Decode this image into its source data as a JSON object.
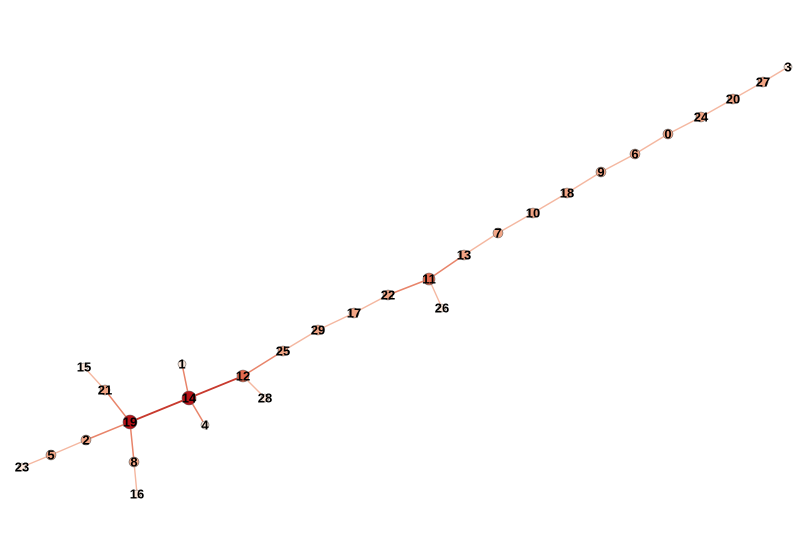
{
  "graph": {
    "colors": {
      "edge_light": "#f4b7a0",
      "edge_mid": "#e8846a",
      "edge_dark": "#c83a2e",
      "node_light": "#fde8dc",
      "node_mid": "#f2a585",
      "node_strong": "#e46a4e",
      "node_dark": "#b51218",
      "node_stroke": "#6b6b6b"
    },
    "nodes": [
      {
        "id": "0",
        "label": "0",
        "level": 2
      },
      {
        "id": "1",
        "label": "1",
        "level": 0
      },
      {
        "id": "2",
        "label": "2",
        "level": 2
      },
      {
        "id": "3",
        "label": "3",
        "level": 0
      },
      {
        "id": "4",
        "label": "4",
        "level": 0
      },
      {
        "id": "5",
        "label": "5",
        "level": 2
      },
      {
        "id": "6",
        "label": "6",
        "level": 2
      },
      {
        "id": "7",
        "label": "7",
        "level": 2
      },
      {
        "id": "8",
        "label": "8",
        "level": 1
      },
      {
        "id": "9",
        "label": "9",
        "level": 2
      },
      {
        "id": "10",
        "label": "10",
        "level": 2
      },
      {
        "id": "11",
        "label": "11",
        "level": 3
      },
      {
        "id": "12",
        "label": "12",
        "level": 3
      },
      {
        "id": "13",
        "label": "13",
        "level": 2
      },
      {
        "id": "14",
        "label": "14",
        "level": 4
      },
      {
        "id": "15",
        "label": "15",
        "level": 0
      },
      {
        "id": "16",
        "label": "16",
        "level": 0
      },
      {
        "id": "17",
        "label": "17",
        "level": 2
      },
      {
        "id": "18",
        "label": "18",
        "level": 2
      },
      {
        "id": "19",
        "label": "19",
        "level": 4
      },
      {
        "id": "20",
        "label": "20",
        "level": 2
      },
      {
        "id": "21",
        "label": "21",
        "level": 1
      },
      {
        "id": "22",
        "label": "22",
        "level": 2
      },
      {
        "id": "23",
        "label": "23",
        "level": 0
      },
      {
        "id": "24",
        "label": "24",
        "level": 2
      },
      {
        "id": "25",
        "label": "25",
        "level": 2
      },
      {
        "id": "26",
        "label": "26",
        "level": 0
      },
      {
        "id": "27",
        "label": "27",
        "level": 1
      },
      {
        "id": "28",
        "label": "28",
        "level": 0
      },
      {
        "id": "29",
        "label": "29",
        "level": 2
      }
    ],
    "edges": [
      [
        "3",
        "27"
      ],
      [
        "27",
        "20"
      ],
      [
        "20",
        "24"
      ],
      [
        "24",
        "0"
      ],
      [
        "0",
        "6"
      ],
      [
        "6",
        "9"
      ],
      [
        "9",
        "18"
      ],
      [
        "18",
        "10"
      ],
      [
        "10",
        "7"
      ],
      [
        "7",
        "13"
      ],
      [
        "13",
        "11"
      ],
      [
        "11",
        "26"
      ],
      [
        "11",
        "22"
      ],
      [
        "22",
        "17"
      ],
      [
        "17",
        "29"
      ],
      [
        "29",
        "25"
      ],
      [
        "25",
        "12"
      ],
      [
        "12",
        "28"
      ],
      [
        "12",
        "14"
      ],
      [
        "14",
        "1"
      ],
      [
        "14",
        "4"
      ],
      [
        "14",
        "19"
      ],
      [
        "19",
        "21"
      ],
      [
        "21",
        "15"
      ],
      [
        "19",
        "8"
      ],
      [
        "8",
        "16"
      ],
      [
        "19",
        "2"
      ],
      [
        "2",
        "5"
      ],
      [
        "5",
        "23"
      ]
    ]
  }
}
